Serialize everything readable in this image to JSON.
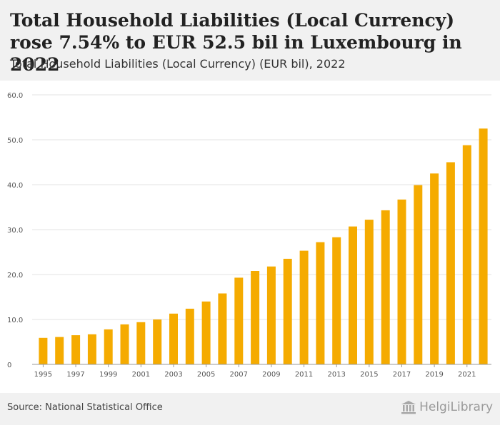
{
  "header": {
    "title": "Total Household Liabilities (Local Currency) rose 7.54% to EUR 52.5 bil in Luxembourg in 2022",
    "subtitle": "Total Household Liabilities (Local Currency) (EUR bil), 2022"
  },
  "footer": {
    "source": "Source: National Statistical Office",
    "brand": "HelgiLibrary"
  },
  "colors": {
    "bar": "#f5ab00",
    "grid": "#e3e3e3",
    "axis": "#999999"
  },
  "chart_data": {
    "type": "bar",
    "title": "Total Household Liabilities (Local Currency) (EUR bil), 2022",
    "xlabel": "",
    "ylabel": "",
    "ylim": [
      0,
      60
    ],
    "y_ticks": [
      "0",
      "10.0",
      "20.0",
      "30.0",
      "40.0",
      "50.0",
      "60.0"
    ],
    "x_tick_labels": [
      "1995",
      "1997",
      "1999",
      "2001",
      "2003",
      "2005",
      "2007",
      "2009",
      "2011",
      "2013",
      "2015",
      "2017",
      "2019",
      "2021"
    ],
    "grid": true,
    "categories": [
      "1995",
      "1996",
      "1997",
      "1998",
      "1999",
      "2000",
      "2001",
      "2002",
      "2003",
      "2004",
      "2005",
      "2006",
      "2007",
      "2008",
      "2009",
      "2010",
      "2011",
      "2012",
      "2013",
      "2014",
      "2015",
      "2016",
      "2017",
      "2018",
      "2019",
      "2020",
      "2021",
      "2022"
    ],
    "values": [
      5.9,
      6.1,
      6.5,
      6.7,
      7.8,
      8.9,
      9.4,
      10.0,
      11.3,
      12.4,
      14.0,
      15.8,
      19.3,
      20.8,
      21.8,
      23.5,
      25.3,
      27.2,
      28.3,
      30.7,
      32.2,
      34.3,
      36.7,
      39.9,
      42.5,
      45.0,
      48.8,
      52.5
    ]
  }
}
